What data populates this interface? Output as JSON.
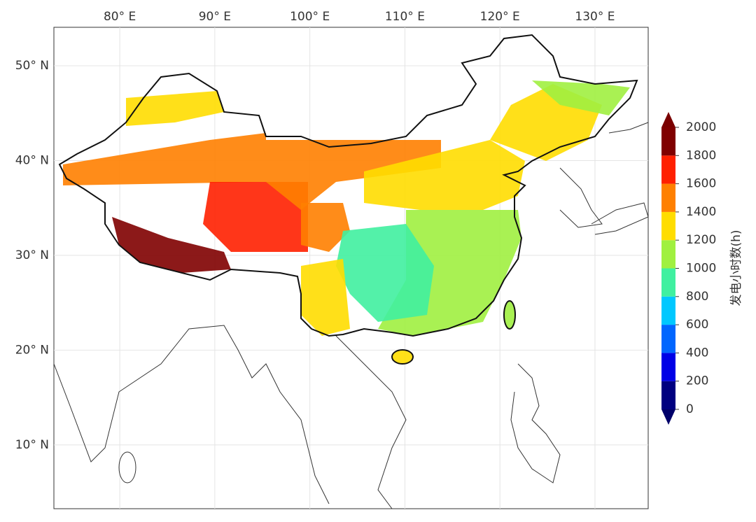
{
  "map": {
    "xlim": [
      73.07,
      135.6
    ],
    "ylim": [
      3.27,
      54.06
    ],
    "lon_labels": [
      {
        "value": 80,
        "label": "80° E"
      },
      {
        "value": 90,
        "label": "90° E"
      },
      {
        "value": 100,
        "label": "100° E"
      },
      {
        "value": 110,
        "label": "110° E"
      },
      {
        "value": 120,
        "label": "120° E"
      },
      {
        "value": 130,
        "label": "130° E"
      }
    ],
    "lat_labels": [
      {
        "value": 50,
        "label": "50° N"
      },
      {
        "value": 40,
        "label": "40° N"
      },
      {
        "value": 30,
        "label": "30° N"
      },
      {
        "value": 20,
        "label": "20° N"
      },
      {
        "value": 10,
        "label": "10° N"
      }
    ]
  },
  "colorbar": {
    "label": "发电小时数(h)",
    "ticks": [
      0,
      200,
      400,
      600,
      800,
      1000,
      1200,
      1400,
      1600,
      1800,
      2000
    ],
    "colors": [
      "#000080",
      "#0000e6",
      "#0066ff",
      "#00c8ff",
      "#40f0a0",
      "#a0f040",
      "#ffdd00",
      "#ff8000",
      "#ff2000",
      "#800000"
    ],
    "under_color": "#00006a",
    "over_color": "#7a0000"
  }
}
